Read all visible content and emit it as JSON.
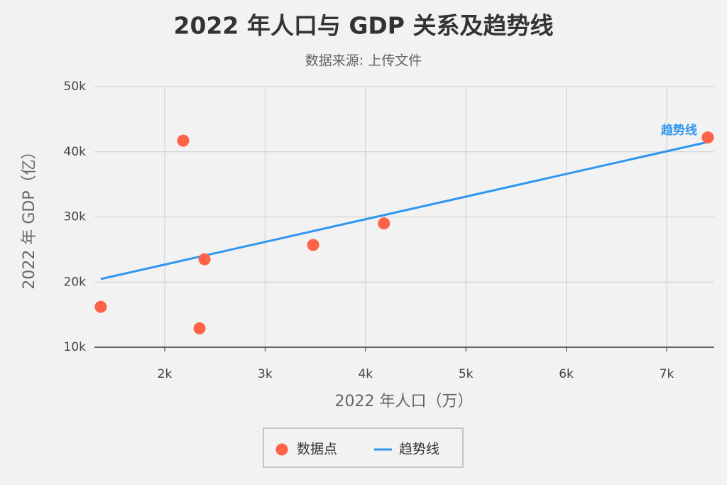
{
  "chart_data": {
    "type": "scatter",
    "title": "2022 年人口与 GDP 关系及趋势线",
    "subtitle": "数据来源: 上传文件",
    "x_label": "2022 年人口（万）",
    "y_label": "2022 年 GDP（亿）",
    "annotation": "趋势线",
    "grid": true,
    "legend": "bottom",
    "xlim": [
      1300,
      7474
    ],
    "ylim": [
      10000,
      50000
    ],
    "xticks": [
      {
        "value": 2000,
        "label": "2k"
      },
      {
        "value": 3000,
        "label": "3k"
      },
      {
        "value": 4000,
        "label": "4k"
      },
      {
        "value": 5000,
        "label": "5k"
      },
      {
        "value": 6000,
        "label": "6k"
      },
      {
        "value": 7000,
        "label": "7k"
      }
    ],
    "yticks": [
      {
        "value": 10000,
        "label": "10k"
      },
      {
        "value": 20000,
        "label": "20k"
      },
      {
        "value": 30000,
        "label": "30k"
      },
      {
        "value": 40000,
        "label": "40k"
      },
      {
        "value": 50000,
        "label": "50k"
      }
    ],
    "series": [
      {
        "name": "数据点",
        "type": "scatter",
        "color": "#ff6347",
        "x": [
          1363,
          2184,
          2397,
          2347,
          3479,
          4184,
          7410
        ],
        "values": [
          16200,
          41700,
          23500,
          12900,
          25700,
          29000,
          42200
        ]
      },
      {
        "name": "趋势线",
        "type": "line",
        "color": "#2e96f0",
        "x": [
          1363,
          7410
        ],
        "values": [
          20470,
          41500
        ]
      }
    ]
  }
}
